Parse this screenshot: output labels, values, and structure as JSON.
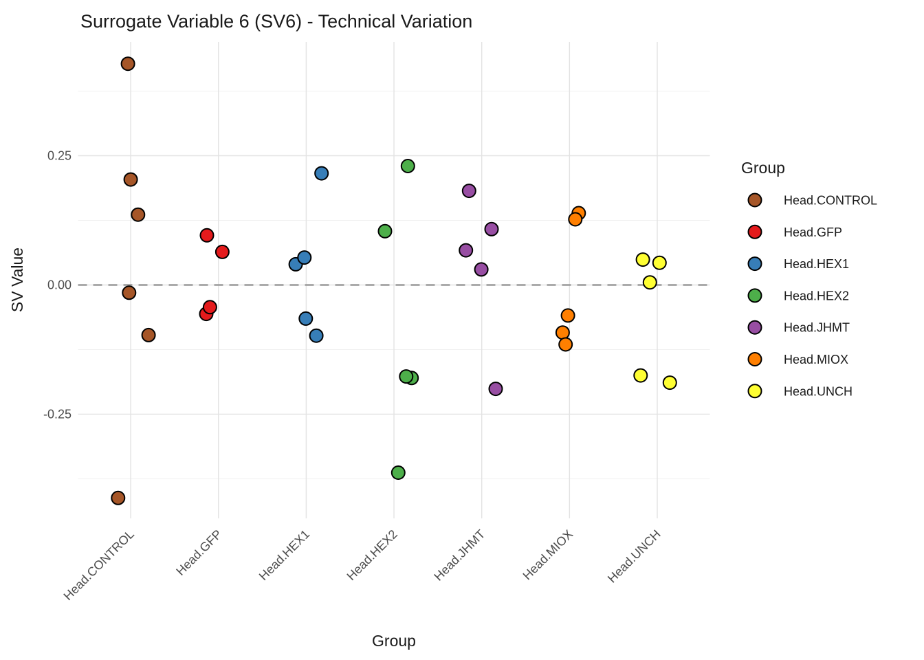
{
  "chart_data": {
    "type": "scatter",
    "title": "Surrogate Variable 6 (SV6) - Technical Variation",
    "xlabel": "Group",
    "ylabel": "SV Value",
    "legend_title": "Group",
    "legend_position": "right",
    "grid": true,
    "categories": [
      "Head.CONTROL",
      "Head.GFP",
      "Head.HEX1",
      "Head.HEX2",
      "Head.JHMT",
      "Head.MIOX",
      "Head.UNCH"
    ],
    "ylim": [
      -0.4515,
      0.4701
    ],
    "y_ticks": [
      {
        "label": "0.25",
        "value": 0.25
      },
      {
        "label": "0.00",
        "value": 0.0
      },
      {
        "label": "-0.25",
        "value": -0.25
      }
    ],
    "y_minor_ticks": [
      0.375,
      0.125,
      -0.125,
      -0.375
    ],
    "zero_line": {
      "value": 0.0,
      "style": "dashed",
      "color": "#999999"
    },
    "point_style": {
      "radius": 9.5,
      "stroke": "#000000",
      "stroke_width": 2
    },
    "grid_colors": {
      "major": "#e3e3e3",
      "minor": "#f0f0f0"
    },
    "series": [
      {
        "name": "Head.CONTROL",
        "color": "#A65628",
        "points": [
          {
            "value": 0.428,
            "jitter": -0.031
          },
          {
            "value": 0.204,
            "jitter": 0.0
          },
          {
            "value": 0.136,
            "jitter": 0.084
          },
          {
            "value": -0.015,
            "jitter": -0.018
          },
          {
            "value": -0.097,
            "jitter": 0.204
          },
          {
            "value": -0.412,
            "jitter": -0.143
          }
        ]
      },
      {
        "name": "Head.GFP",
        "color": "#E41A1C",
        "points": [
          {
            "value": 0.096,
            "jitter": -0.131
          },
          {
            "value": 0.064,
            "jitter": 0.044
          },
          {
            "value": -0.056,
            "jitter": -0.139
          },
          {
            "value": -0.043,
            "jitter": -0.097
          }
        ]
      },
      {
        "name": "Head.HEX1",
        "color": "#377EB8",
        "points": [
          {
            "value": 0.216,
            "jitter": 0.175
          },
          {
            "value": 0.04,
            "jitter": -0.12
          },
          {
            "value": 0.053,
            "jitter": -0.02
          },
          {
            "value": -0.065,
            "jitter": -0.005
          },
          {
            "value": -0.098,
            "jitter": 0.115
          }
        ]
      },
      {
        "name": "Head.HEX2",
        "color": "#4DAF4A",
        "points": [
          {
            "value": 0.23,
            "jitter": 0.159
          },
          {
            "value": 0.104,
            "jitter": -0.102
          },
          {
            "value": -0.18,
            "jitter": 0.201
          },
          {
            "value": -0.177,
            "jitter": 0.139
          },
          {
            "value": -0.363,
            "jitter": 0.049
          }
        ]
      },
      {
        "name": "Head.JHMT",
        "color": "#984EA3",
        "points": [
          {
            "value": 0.182,
            "jitter": -0.144
          },
          {
            "value": 0.108,
            "jitter": 0.112
          },
          {
            "value": 0.067,
            "jitter": -0.18
          },
          {
            "value": 0.03,
            "jitter": -0.005
          },
          {
            "value": -0.201,
            "jitter": 0.159
          }
        ]
      },
      {
        "name": "Head.MIOX",
        "color": "#FF7F00",
        "points": [
          {
            "value": 0.139,
            "jitter": 0.105
          },
          {
            "value": 0.127,
            "jitter": 0.066
          },
          {
            "value": -0.059,
            "jitter": -0.018
          },
          {
            "value": -0.092,
            "jitter": -0.078
          },
          {
            "value": -0.115,
            "jitter": -0.044
          }
        ]
      },
      {
        "name": "Head.UNCH",
        "color": "#FFFF33",
        "points": [
          {
            "value": 0.049,
            "jitter": -0.164
          },
          {
            "value": 0.043,
            "jitter": 0.026
          },
          {
            "value": 0.005,
            "jitter": -0.084
          },
          {
            "value": -0.175,
            "jitter": -0.19
          },
          {
            "value": -0.189,
            "jitter": 0.143
          }
        ]
      }
    ]
  }
}
